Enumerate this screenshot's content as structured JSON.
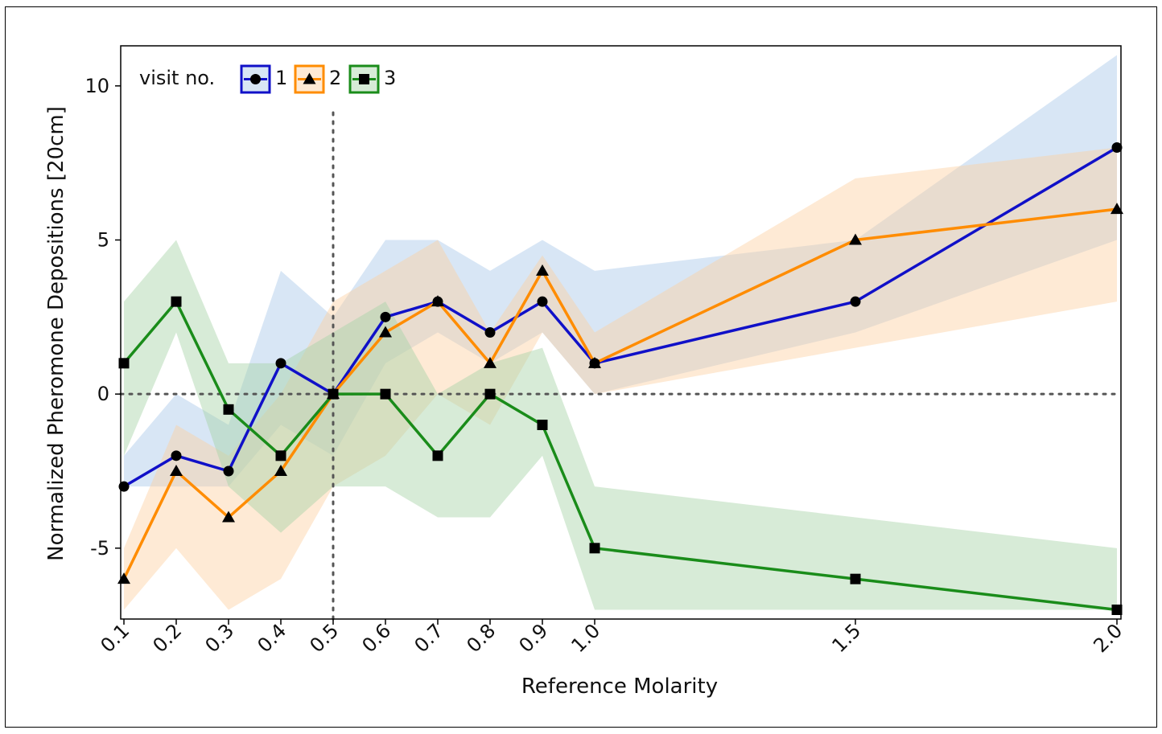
{
  "chart_data": {
    "type": "line",
    "xlabel": "Reference Molarity",
    "ylabel": "Normalized Pheromone Depositions [20cm]",
    "xlim": [
      0.1,
      2.0
    ],
    "ylim": [
      -7.3,
      11.3
    ],
    "x_layout": "categorical-spacing-for-0.1-to-1.0-then-linear",
    "x_ticks": [
      "0.1",
      "0.2",
      "0.3",
      "0.4",
      "0.5",
      "0.6",
      "0.7",
      "0.8",
      "0.9",
      "1.0",
      "1.5",
      "2.0"
    ],
    "y_ticks": [
      "-5",
      "0",
      "5",
      "10"
    ],
    "y_tick_values": [
      -5,
      0,
      5,
      10
    ],
    "reference_lines": {
      "x": 0.5,
      "y": 0,
      "style": "dotted"
    },
    "legend": {
      "title": "visit no.",
      "position": "top-left"
    },
    "series": [
      {
        "name": "1",
        "color": "#1010c8",
        "band_color": "#a9c8e8",
        "marker": "circle",
        "x": [
          0.1,
          0.2,
          0.3,
          0.4,
          0.5,
          0.6,
          0.7,
          0.8,
          0.9,
          1.0,
          1.5,
          2.0
        ],
        "y": [
          -3,
          -2,
          -2.5,
          1,
          0,
          2.5,
          3,
          2,
          3,
          1,
          3,
          8
        ],
        "band_low": [
          -3,
          -3,
          -3,
          -1,
          -2,
          1,
          2,
          1,
          2,
          0,
          2,
          5
        ],
        "band_high": [
          -2,
          0,
          -1,
          4,
          2.5,
          5,
          5,
          4,
          5,
          4,
          5,
          11
        ]
      },
      {
        "name": "2",
        "color": "#ff8c00",
        "band_color": "#fdd0a2",
        "marker": "triangle",
        "x": [
          0.1,
          0.2,
          0.3,
          0.4,
          0.5,
          0.6,
          0.7,
          0.8,
          0.9,
          1.0,
          1.5,
          2.0
        ],
        "y": [
          -6,
          -2.5,
          -4,
          -2.5,
          0,
          2,
          3,
          1,
          4,
          1,
          5,
          6
        ],
        "band_low": [
          -7,
          -5,
          -7,
          -6,
          -3,
          -2,
          0,
          -1,
          2,
          0,
          1.5,
          3
        ],
        "band_high": [
          -5,
          -1,
          -2,
          0,
          3,
          4,
          5,
          2,
          4.5,
          2,
          7,
          8
        ]
      },
      {
        "name": "3",
        "color": "#1a8c1a",
        "band_color": "#a6d3a6",
        "marker": "square",
        "x": [
          0.1,
          0.2,
          0.3,
          0.4,
          0.5,
          0.6,
          0.7,
          0.8,
          0.9,
          1.0,
          1.5,
          2.0
        ],
        "y": [
          1,
          3,
          -0.5,
          -2,
          0,
          0,
          -2,
          0,
          -1,
          -5,
          -6,
          -7
        ],
        "band_low": [
          -2,
          2,
          -3,
          -4.5,
          -3,
          -3,
          -4,
          -4,
          -2,
          -7,
          -7,
          -7
        ],
        "band_high": [
          3,
          5,
          1,
          1,
          2,
          3,
          0,
          1,
          1.5,
          -3,
          -4,
          -5
        ]
      }
    ]
  }
}
